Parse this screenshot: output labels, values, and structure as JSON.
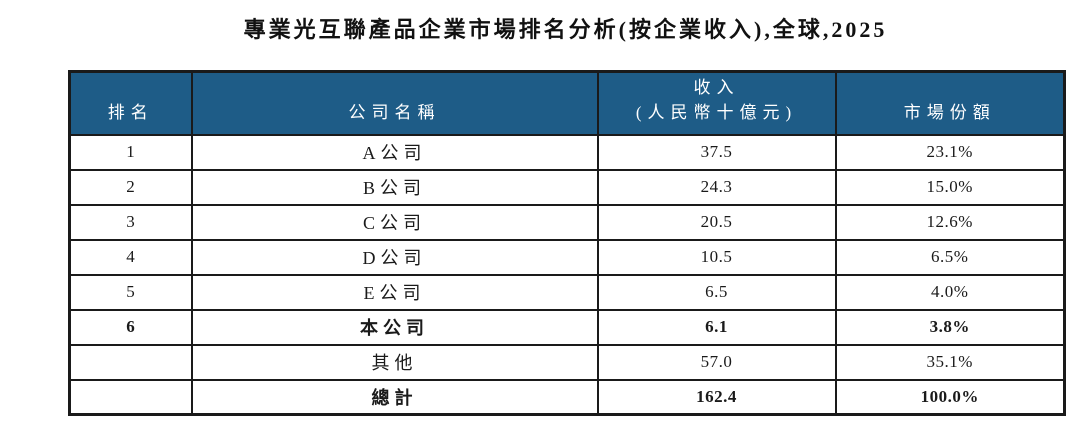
{
  "title": "專業光互聯產品企業市場排名分析(按企業收入),全球,2025",
  "colors": {
    "header_bg": "#1e5c87",
    "header_text": "#ffffff",
    "border": "#1a1a1a",
    "text": "#1a1a1a",
    "page_bg": "#ffffff"
  },
  "table": {
    "header": {
      "rank": "排名",
      "company": "公司名稱",
      "revenue_line1": "收入",
      "revenue_line2": "(人民幣十億元)",
      "share": "市場份額"
    },
    "rows": [
      {
        "rank": "1",
        "company": "A公司",
        "revenue": "37.5",
        "share": "23.1%"
      },
      {
        "rank": "2",
        "company": "B公司",
        "revenue": "24.3",
        "share": "15.0%"
      },
      {
        "rank": "3",
        "company": "C公司",
        "revenue": "20.5",
        "share": "12.6%"
      },
      {
        "rank": "4",
        "company": "D公司",
        "revenue": "10.5",
        "share": "6.5%"
      },
      {
        "rank": "5",
        "company": "E公司",
        "revenue": "6.5",
        "share": "4.0%"
      },
      {
        "rank": "6",
        "company": "本公司",
        "revenue": "6.1",
        "share": "3.8%"
      },
      {
        "rank": "",
        "company": "其他",
        "revenue": "57.0",
        "share": "35.1%"
      },
      {
        "rank": "",
        "company": "總計",
        "revenue": "162.4",
        "share": "100.0%"
      }
    ]
  }
}
